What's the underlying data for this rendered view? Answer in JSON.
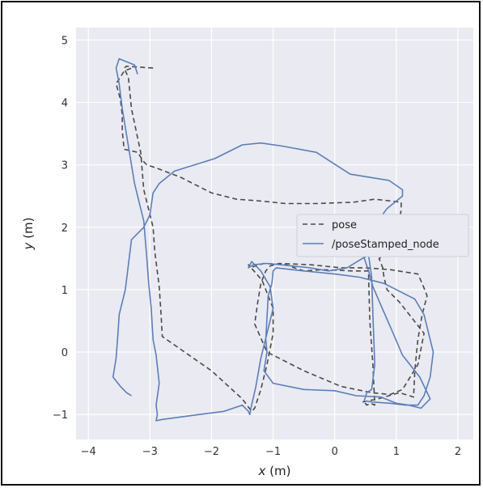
{
  "chart_data": {
    "type": "line",
    "xlabel_var": "x",
    "xlabel_unit": " (m)",
    "ylabel_var": "y",
    "ylabel_unit": " (m)",
    "xlim": [
      -4.2,
      2.25
    ],
    "ylim": [
      -1.4,
      5.2
    ],
    "xticks": [
      -4,
      -3,
      -2,
      -1,
      0,
      1,
      2
    ],
    "yticks": [
      -1,
      0,
      1,
      2,
      3,
      4,
      5
    ],
    "xtick_labels": [
      "−4",
      "−3",
      "−2",
      "−1",
      "0",
      "1",
      "2"
    ],
    "ytick_labels": [
      "−1",
      "0",
      "1",
      "2",
      "3",
      "4",
      "5"
    ],
    "grid": true,
    "legend_position": "center-right",
    "series": [
      {
        "name": "pose",
        "style": "dashed",
        "color": "#4a4a4a",
        "x": [
          -2.95,
          -3.38,
          -3.42,
          -3.35,
          -3.3,
          -3.15,
          -3.1,
          -2.95,
          -2.92,
          -2.85,
          -2.82,
          -2.8,
          -2.0,
          -1.5,
          -1.35,
          -1.3,
          -1.2,
          -1.1,
          -1.0,
          -1.0,
          -1.18,
          -1.4,
          -1.38,
          -1.15,
          -0.8,
          -0.5,
          -0.2,
          0.3,
          0.55,
          0.55,
          0.57,
          0.62,
          0.65,
          0.58,
          0.52,
          0.48,
          0.45,
          0.7,
          1.05,
          1.28,
          1.3,
          1.35,
          1.42,
          1.5,
          1.42,
          1.35,
          0.9,
          0.5,
          0.1,
          -0.4,
          -0.9,
          -1.05,
          -1.12,
          -1.2,
          -1.25,
          -1.3,
          -1.1,
          -0.5,
          0.1,
          0.35,
          0.6,
          0.9,
          1.1,
          1.35,
          1.45,
          1.05,
          0.85,
          0.8,
          0.78,
          0.72,
          0.95,
          1.05,
          1.05,
          1.08,
          1.08,
          0.65,
          0.3,
          -0.3,
          -0.8,
          -1.2,
          -1.6,
          -1.8,
          -2.0,
          -2.5,
          -2.9,
          -3.05,
          -3.1,
          -3.2,
          -3.42,
          -3.45,
          -3.45,
          -3.48,
          -3.55,
          -3.42,
          -3.3
        ],
        "y": [
          4.55,
          4.58,
          4.55,
          4.4,
          3.9,
          3.2,
          2.6,
          2.0,
          1.6,
          1.05,
          0.6,
          0.25,
          -0.3,
          -0.75,
          -0.95,
          -0.9,
          -0.6,
          -0.2,
          0.3,
          0.7,
          1.15,
          1.4,
          1.35,
          1.42,
          1.4,
          1.3,
          1.32,
          1.3,
          1.3,
          1.2,
          0.5,
          -0.2,
          -0.85,
          -0.82,
          -0.85,
          -0.8,
          -0.8,
          -0.75,
          -0.65,
          -0.72,
          -0.3,
          0.2,
          0.6,
          0.9,
          1.1,
          1.25,
          1.32,
          1.35,
          1.35,
          1.4,
          1.42,
          1.38,
          1.3,
          1.1,
          0.8,
          0.45,
          0.0,
          -0.3,
          -0.55,
          -0.6,
          -0.65,
          -0.68,
          -0.6,
          -0.2,
          0.3,
          0.8,
          1.0,
          1.2,
          1.35,
          1.5,
          1.6,
          1.8,
          2.05,
          2.3,
          2.4,
          2.45,
          2.4,
          2.38,
          2.38,
          2.42,
          2.45,
          2.5,
          2.55,
          2.8,
          2.95,
          3.0,
          3.05,
          3.2,
          3.25,
          3.55,
          3.8,
          4.05,
          4.3,
          4.5,
          4.55
        ]
      },
      {
        "name": "/poseStamped_node",
        "style": "solid",
        "color": "#5b7fb8",
        "x": [
          -3.2,
          -3.25,
          -3.5,
          -3.55,
          -3.5,
          -3.45,
          -3.35,
          -3.25,
          -3.1,
          -3.05,
          -3.02,
          -2.98,
          -2.95,
          -2.9,
          -2.85,
          -2.9,
          -2.88,
          -2.9,
          -2.8,
          -2.2,
          -1.8,
          -1.5,
          -1.4,
          -1.38,
          -1.35,
          -1.28,
          -1.2,
          -1.1,
          -1.0,
          -1.05,
          -1.2,
          -1.35,
          -1.4,
          -1.32,
          -1.1,
          -0.7,
          -0.4,
          -0.1,
          0.2,
          0.45,
          0.55,
          0.6,
          0.62,
          0.65,
          0.6,
          0.52,
          0.48,
          0.6,
          0.9,
          1.15,
          1.35,
          1.45,
          1.55,
          1.6,
          1.55,
          1.45,
          1.3,
          0.8,
          0.4,
          0.0,
          -0.5,
          -0.95,
          -1.0,
          -1.02,
          -1.08,
          -1.1,
          -1.12,
          -1.1,
          -1.15,
          -1.0,
          -0.5,
          0.0,
          0.35,
          0.75,
          1.0,
          1.2,
          1.4,
          1.55,
          1.38,
          1.1,
          0.95,
          0.75,
          0.62,
          0.55,
          0.48,
          0.35,
          0.7,
          0.85,
          1.1,
          1.1,
          0.88,
          0.25,
          -0.3,
          -0.85,
          -1.2,
          -1.5,
          -1.95,
          -2.6,
          -2.85,
          -2.95,
          -3.0,
          -3.1,
          -3.3,
          -3.35,
          -3.4,
          -3.5,
          -3.52,
          -3.55,
          -3.6,
          -3.48,
          -3.38,
          -3.3
        ],
        "y": [
          4.45,
          4.6,
          4.7,
          4.55,
          4.3,
          3.9,
          3.3,
          2.7,
          2.1,
          1.5,
          1.1,
          0.7,
          0.2,
          -0.05,
          -0.5,
          -0.85,
          -1.0,
          -1.1,
          -1.08,
          -1.0,
          -0.95,
          -0.85,
          -0.95,
          -1.0,
          -0.85,
          -0.55,
          -0.1,
          0.3,
          0.7,
          1.05,
          1.3,
          1.45,
          1.35,
          1.4,
          1.42,
          1.38,
          1.35,
          1.3,
          1.35,
          1.5,
          1.55,
          1.2,
          0.6,
          -0.2,
          -0.6,
          -0.65,
          -0.78,
          -0.8,
          -0.82,
          -0.85,
          -0.85,
          -0.7,
          -0.4,
          0.0,
          0.2,
          0.6,
          0.85,
          1.1,
          1.2,
          1.25,
          1.3,
          1.35,
          1.3,
          1.1,
          0.9,
          0.55,
          0.2,
          0.0,
          -0.3,
          -0.5,
          -0.6,
          -0.62,
          -0.7,
          -0.72,
          -0.82,
          -0.85,
          -0.9,
          -0.75,
          -0.4,
          -0.05,
          0.3,
          0.75,
          1.05,
          1.3,
          1.5,
          1.8,
          2.1,
          2.3,
          2.5,
          2.6,
          2.75,
          2.85,
          3.2,
          3.3,
          3.35,
          3.32,
          3.1,
          2.9,
          2.7,
          2.55,
          2.2,
          2.0,
          1.8,
          1.4,
          1.0,
          0.6,
          0.3,
          -0.1,
          -0.4,
          -0.55,
          -0.65,
          -0.7
        ]
      }
    ]
  }
}
